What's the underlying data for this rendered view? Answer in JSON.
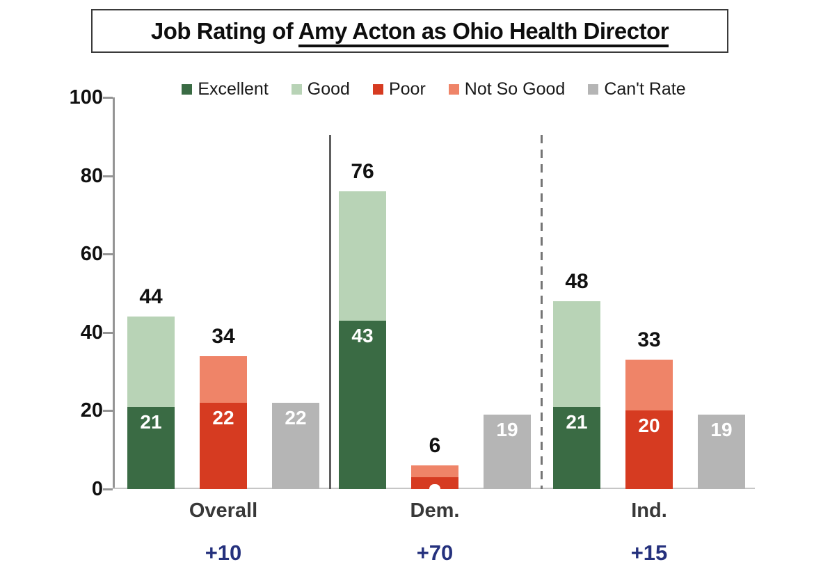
{
  "title": {
    "prefix": "Job Rating of ",
    "underlined": "Amy Acton as Ohio Health Director"
  },
  "chart_data": {
    "type": "bar",
    "stacked": true,
    "title": "Job Rating of Amy Acton as Ohio Health Director",
    "ylim": [
      0,
      100
    ],
    "yticks": [
      0,
      20,
      40,
      60,
      80,
      100
    ],
    "legend_position": "top",
    "grid": false,
    "legend": [
      {
        "label": "Excellent",
        "color": "#3A6B44"
      },
      {
        "label": "Good",
        "color": "#B8D3B6"
      },
      {
        "label": "Poor",
        "color": "#D63B21"
      },
      {
        "label": "Not So Good",
        "color": "#EF8468"
      },
      {
        "label": "Can't Rate",
        "color": "#B5B5B5"
      }
    ],
    "groups": [
      {
        "label": "Overall",
        "net_label": "+10",
        "bars": [
          {
            "name": "positive-stack",
            "total_label": "44",
            "segments": [
              {
                "series": "Excellent",
                "value": 21,
                "label": "21"
              },
              {
                "series": "Good",
                "value": 23
              }
            ]
          },
          {
            "name": "negative-stack",
            "total_label": "34",
            "segments": [
              {
                "series": "Poor",
                "value": 22,
                "label": "22"
              },
              {
                "series": "Not So Good",
                "value": 12
              }
            ]
          },
          {
            "name": "cant-rate-bar",
            "segments": [
              {
                "series": "Can't Rate",
                "value": 22,
                "label": "22"
              }
            ]
          }
        ]
      },
      {
        "label": "Dem.",
        "net_label": "+70",
        "bars": [
          {
            "name": "positive-stack",
            "total_label": "76",
            "segments": [
              {
                "series": "Excellent",
                "value": 43,
                "label": "43"
              },
              {
                "series": "Good",
                "value": 33
              }
            ]
          },
          {
            "name": "negative-stack",
            "total_label": "6",
            "segments": [
              {
                "series": "Poor",
                "value": 3,
                "clipped_label": true
              },
              {
                "series": "Not So Good",
                "value": 3
              }
            ]
          },
          {
            "name": "cant-rate-bar",
            "segments": [
              {
                "series": "Can't Rate",
                "value": 19,
                "label": "19"
              }
            ]
          }
        ]
      },
      {
        "label": "Ind.",
        "net_label": "+15",
        "bars": [
          {
            "name": "positive-stack",
            "total_label": "48",
            "segments": [
              {
                "series": "Excellent",
                "value": 21,
                "label": "21"
              },
              {
                "series": "Good",
                "value": 27
              }
            ]
          },
          {
            "name": "negative-stack",
            "total_label": "33",
            "segments": [
              {
                "series": "Poor",
                "value": 20,
                "label": "20"
              },
              {
                "series": "Not So Good",
                "value": 13
              }
            ]
          },
          {
            "name": "cant-rate-bar",
            "segments": [
              {
                "series": "Can't Rate",
                "value": 19,
                "label": "19"
              }
            ]
          }
        ]
      }
    ],
    "colors": {
      "axis": "#949494",
      "baseline": "#C6C6C6",
      "separator_solid": "#5F5F5F",
      "separator_dashed": "#757575",
      "tick_label": "#101010",
      "group_label": "#383838",
      "net_label": "#25317D",
      "bar_value_label": "#FFFFFF",
      "total_label": "#111111"
    }
  }
}
